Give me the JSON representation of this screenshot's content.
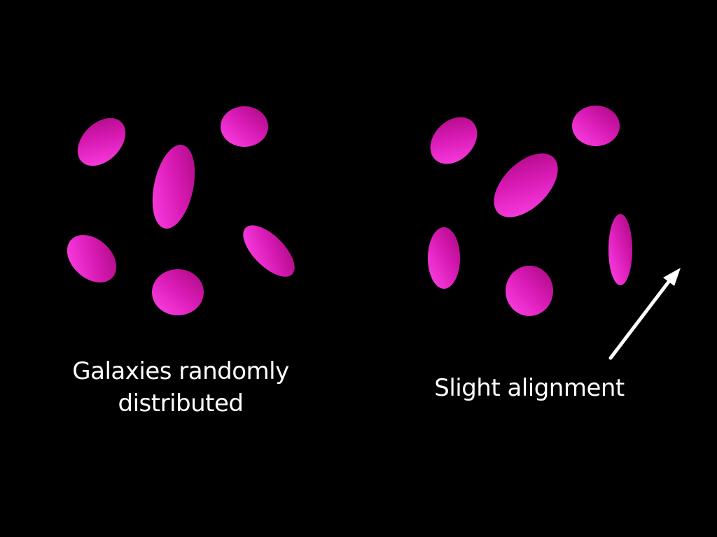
{
  "panels": {
    "left": {
      "caption_line_1": "Galaxies randomly",
      "caption_line_2": "distributed"
    },
    "right": {
      "caption": "Slight alignment"
    }
  },
  "colors": {
    "background": "#000000",
    "galaxy_light": "#ff44e8",
    "galaxy_dark": "#a8087e",
    "text": "#ffffff",
    "arrow": "#ffffff"
  },
  "icons": {
    "arrow": "alignment-direction-arrow-icon"
  }
}
